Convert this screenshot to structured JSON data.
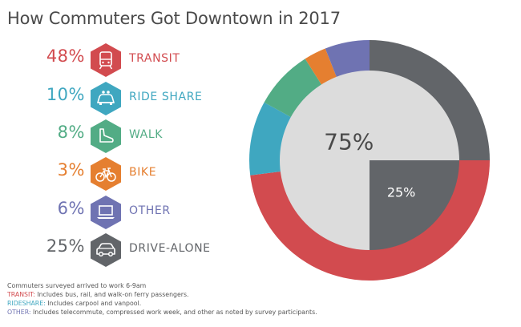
{
  "title": "How Commuters Got Downtown in 2017",
  "chart_data": {
    "type": "pie",
    "title": "How Commuters Got Downtown in 2017",
    "categories": [
      "TRANSIT",
      "RIDE SHARE",
      "WALK",
      "BIKE",
      "OTHER",
      "DRIVE-ALONE"
    ],
    "values": [
      48,
      10,
      8,
      3,
      6,
      25
    ],
    "value_labels": [
      "48%",
      "10%",
      "8%",
      "3%",
      "6%",
      "25%"
    ],
    "inner_pie": {
      "values": [
        75,
        25
      ],
      "labels": [
        "75%",
        "25%"
      ],
      "colors": [
        "#dcdcdc",
        "#626569"
      ]
    },
    "colors": [
      "#d24b4f",
      "#3fa7c0",
      "#52ac85",
      "#e57f30",
      "#6f73b2",
      "#626569"
    ],
    "legend": "left"
  },
  "legend_items": [
    {
      "pct": "48%",
      "label": "TRANSIT",
      "color": "#d24b4f",
      "icon": "train-icon"
    },
    {
      "pct": "10%",
      "label": "RIDE SHARE",
      "color": "#3fa7c0",
      "icon": "carpool-icon"
    },
    {
      "pct": "8%",
      "label": "WALK",
      "color": "#52ac85",
      "icon": "shoe-icon"
    },
    {
      "pct": "3%",
      "label": "BIKE",
      "color": "#e57f30",
      "icon": "bicycle-icon"
    },
    {
      "pct": "6%",
      "label": "OTHER",
      "color": "#6f73b2",
      "icon": "laptop-icon"
    },
    {
      "pct": "25%",
      "label": "DRIVE-ALONE",
      "color": "#626569",
      "icon": "car-icon"
    }
  ],
  "notes": {
    "line1": "Commuters surveyed arrived to work 6-9am",
    "transit_key": "TRANSIT:",
    "transit_text": " Includes bus, rail, and walk-on ferry passengers.",
    "ride_key": "RIDESHARE:",
    "ride_text": " Includes carpool and vanpool.",
    "other_key": "OTHER:",
    "other_text": " Includes telecommute, compressed work week, and other as noted by survey participants."
  }
}
